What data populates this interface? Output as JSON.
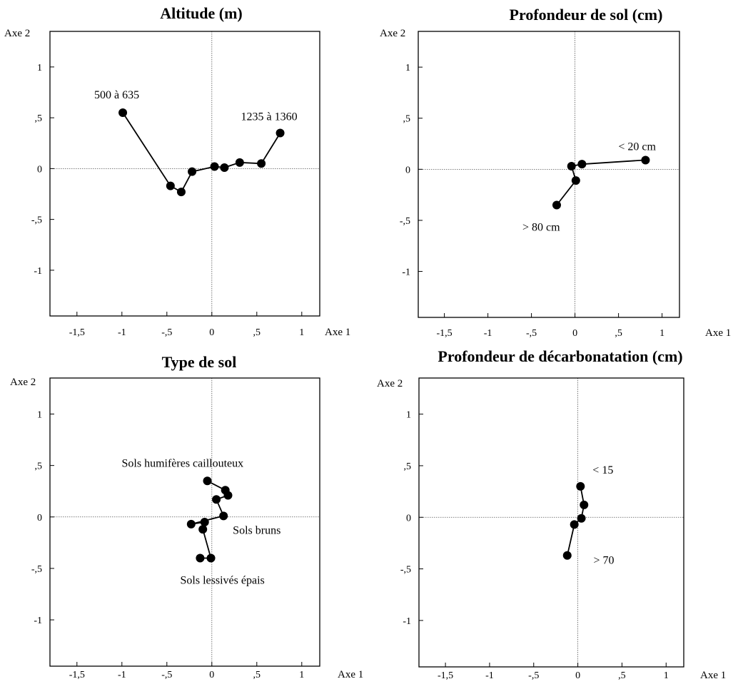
{
  "chart_data": [
    {
      "type": "line",
      "title": "Altitude (m)",
      "xlabel": "Axe 1",
      "ylabel": "Axe 2",
      "xlim": [
        -1.8,
        1.2
      ],
      "ylim": [
        -1.45,
        1.35
      ],
      "xticks": [
        -1.5,
        -1,
        -0.5,
        0,
        0.5,
        1
      ],
      "xtick_labels": [
        "-1,5",
        "-1",
        "-,5",
        "0",
        ",5",
        "1"
      ],
      "yticks": [
        1,
        0.5,
        0,
        -0.5,
        -1
      ],
      "ytick_labels": [
        "1",
        ",5",
        "0",
        "-,5",
        "-1"
      ],
      "grid": false,
      "series": [
        {
          "x": [
            -0.99,
            -0.46,
            -0.34,
            -0.22,
            0.03,
            0.14,
            0.31,
            0.55,
            0.76
          ],
          "y": [
            0.55,
            -0.17,
            -0.23,
            -0.03,
            0.02,
            0.01,
            0.06,
            0.05,
            0.35
          ]
        }
      ],
      "annotations": [
        {
          "text": "500 à 635",
          "x": -0.99,
          "y": 0.55
        },
        {
          "text": "1235 à 1360",
          "x": 0.76,
          "y": 0.35
        }
      ]
    },
    {
      "type": "line",
      "title": "Profondeur de sol (cm)",
      "xlabel": "Axe 1",
      "ylabel": "Axe 2",
      "xlim": [
        -1.8,
        1.2
      ],
      "ylim": [
        -1.45,
        1.35
      ],
      "xticks": [
        -1.5,
        -1,
        -0.5,
        0,
        0.5,
        1
      ],
      "xtick_labels": [
        "-1,5",
        "-1",
        "-,5",
        "0",
        ",5",
        "1"
      ],
      "yticks": [
        1,
        0.5,
        0,
        -0.5,
        -1
      ],
      "ytick_labels": [
        "1",
        ",5",
        "0",
        "-,5",
        "-1"
      ],
      "grid": false,
      "series": [
        {
          "x": [
            -0.21,
            0.01,
            -0.04,
            0.08,
            0.81
          ],
          "y": [
            -0.35,
            -0.11,
            0.03,
            0.05,
            0.09
          ]
        }
      ],
      "annotations": [
        {
          "text": "< 20 cm",
          "x": 0.81,
          "y": 0.09
        },
        {
          "text": "> 80 cm",
          "x": -0.21,
          "y": -0.35
        }
      ]
    },
    {
      "type": "line",
      "title": "Type de sol",
      "xlabel": "Axe 1",
      "ylabel": "Axe 2",
      "xlim": [
        -1.8,
        1.2
      ],
      "ylim": [
        -1.45,
        1.35
      ],
      "xticks": [
        -1.5,
        -1,
        -0.5,
        0,
        0.5,
        1
      ],
      "xtick_labels": [
        "-1,5",
        "-1",
        "-,5",
        "0",
        ",5",
        "1"
      ],
      "yticks": [
        1,
        0.5,
        0,
        -0.5,
        -1
      ],
      "ytick_labels": [
        "1",
        ",5",
        "0",
        "-,5",
        "-1"
      ],
      "grid": false,
      "series": [
        {
          "x": [
            -0.05,
            0.15,
            0.18,
            0.05,
            0.13,
            -0.23,
            -0.08,
            -0.1,
            -0.01,
            -0.13
          ],
          "y": [
            0.35,
            0.26,
            0.21,
            0.17,
            0.01,
            -0.07,
            -0.05,
            -0.12,
            -0.4,
            -0.4
          ]
        }
      ],
      "annotations": [
        {
          "text": "Sols humifères caillouteux",
          "x": -0.05,
          "y": 0.35
        },
        {
          "text": "Sols bruns",
          "x": 0.13,
          "y": 0.01
        },
        {
          "text": "Sols lessivés épais",
          "x": -0.01,
          "y": -0.4
        }
      ]
    },
    {
      "type": "line",
      "title": "Profondeur de décarbonatation (cm)",
      "xlabel": "Axe 1",
      "ylabel": "Axe 2",
      "xlim": [
        -1.8,
        1.2
      ],
      "ylim": [
        -1.45,
        1.35
      ],
      "xticks": [
        -1.5,
        -1,
        -0.5,
        0,
        0.5,
        1
      ],
      "xtick_labels": [
        "-1,5",
        "-1",
        "-,5",
        "0",
        ",5",
        "1"
      ],
      "yticks": [
        1,
        0.5,
        0,
        -0.5,
        -1
      ],
      "ytick_labels": [
        "1",
        ",5",
        "0",
        "-,5",
        "-1"
      ],
      "grid": false,
      "series": [
        {
          "x": [
            0.03,
            0.07,
            0.04,
            -0.04,
            -0.12
          ],
          "y": [
            0.3,
            0.12,
            -0.01,
            -0.07,
            -0.37
          ]
        }
      ],
      "annotations": [
        {
          "text": "< 15",
          "x": 0.03,
          "y": 0.3
        },
        {
          "text": "> 70",
          "x": 0.04,
          "y": -0.45
        }
      ]
    }
  ]
}
